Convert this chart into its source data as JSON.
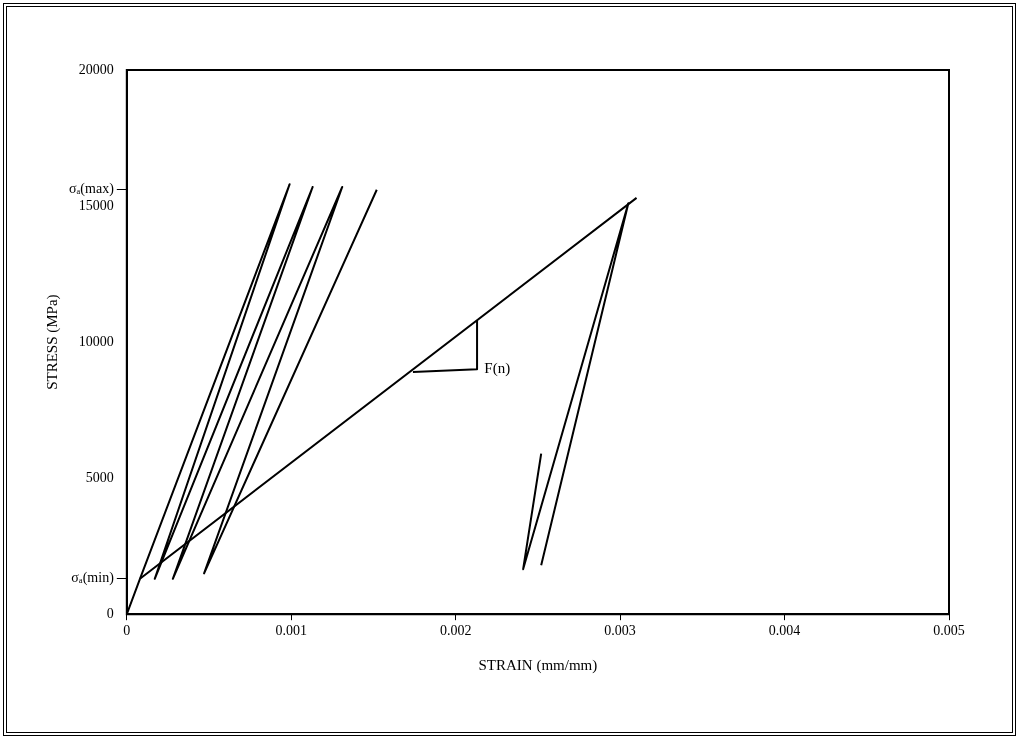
{
  "chart_data": {
    "type": "line",
    "xlabel": "STRAIN (mm/mm)",
    "ylabel": "STRESS (MPa)",
    "xlim": [
      0,
      0.005
    ],
    "xticks": [
      0,
      0.001,
      0.002,
      0.003,
      0.004,
      0.005
    ],
    "ylim": [
      0,
      20000
    ],
    "yticks": [
      0,
      {
        "value": 1300,
        "label": "σₐ(min)"
      },
      5000,
      10000,
      15000,
      {
        "value": 15600,
        "label": "σₐ(max)"
      },
      20000
    ],
    "grid": false,
    "legend": false,
    "marker": "none",
    "line_style": "solid",
    "series": [
      {
        "color": "#000000",
        "x": [
          0,
          8e-05,
          0.0031
        ],
        "values": [
          0,
          1300,
          15300
        ]
      },
      {
        "color": "#000000",
        "x": [
          8e-05,
          0.00099,
          0.00017,
          0.00113,
          0.00028,
          0.00131,
          0.00047,
          0.00152
        ],
        "values": [
          1300,
          15800,
          1300,
          15700,
          1300,
          15700,
          1500,
          15600
        ]
      },
      {
        "color": "#000000",
        "x": [
          0.00252,
          0.00305,
          0.00241,
          0.00252
        ],
        "values": [
          1800,
          15100,
          1650,
          5900
        ]
      },
      {
        "color": "#000000",
        "x": [
          0.00174,
          0.00213,
          0.00213
        ],
        "values": [
          8900,
          9000,
          10800
        ]
      }
    ],
    "annotations": [
      {
        "text": "F(n)",
        "x": 0.00215,
        "y": 9000
      }
    ]
  }
}
